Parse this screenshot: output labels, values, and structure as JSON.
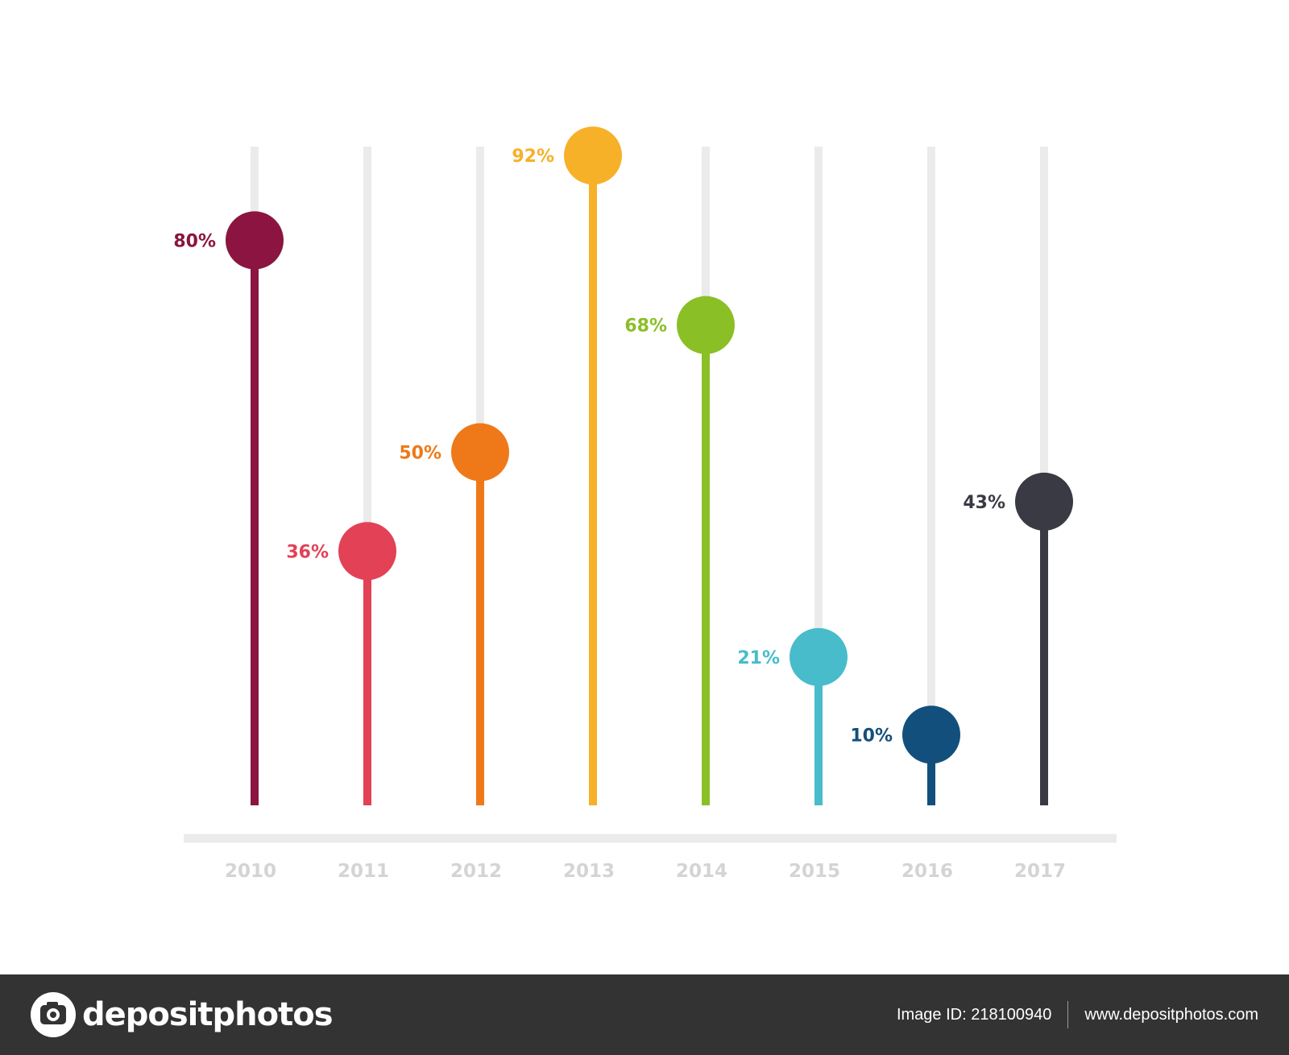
{
  "chart_data": {
    "type": "lollipop",
    "categories": [
      "2010",
      "2011",
      "2012",
      "2013",
      "2014",
      "2015",
      "2016",
      "2017"
    ],
    "values": [
      80,
      36,
      50,
      92,
      68,
      21,
      10,
      43
    ],
    "labels": [
      "80%",
      "36%",
      "50%",
      "92%",
      "68%",
      "21%",
      "10%",
      "43%"
    ],
    "colors": [
      "#8b1540",
      "#e24156",
      "#ef7918",
      "#f6b129",
      "#8bbf26",
      "#48bccb",
      "#134f7c",
      "#3a3a44"
    ],
    "track_color": "#ebebeb",
    "axis_color": "#ebebeb",
    "ylim": [
      0,
      100
    ],
    "title": "",
    "xlabel": "",
    "ylabel": ""
  },
  "footer": {
    "brand": "depositphotos",
    "image_id": "Image ID: 218100940",
    "website": "www.depositphotos.com"
  }
}
